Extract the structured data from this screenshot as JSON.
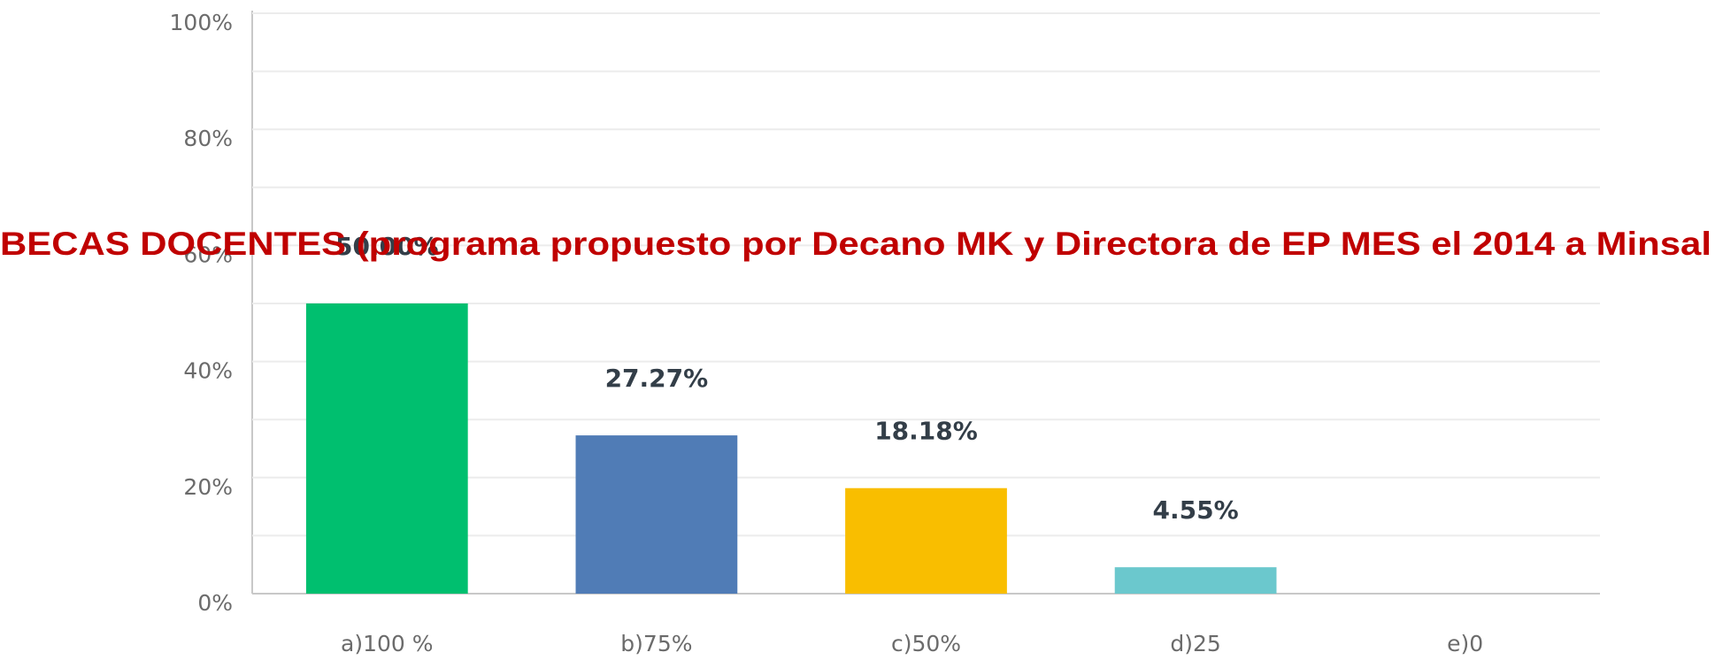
{
  "chart_data": {
    "type": "bar",
    "title": "BECAS DOCENTES (programa propuesto por Decano MK y Directora de EP MES  el 2014   a Minsal",
    "categories": [
      "a)100 %",
      "b)75%",
      "c)50%",
      "d)25",
      "e)0"
    ],
    "values": [
      50.0,
      27.27,
      18.18,
      4.55,
      0
    ],
    "value_labels": [
      "50.00%",
      "27.27%",
      "18.18%",
      "4.55%",
      null
    ],
    "colors": [
      "#00bf6f",
      "#507cb6",
      "#f9be00",
      "#6bc8cd",
      "#9aa0a6"
    ],
    "ylim": [
      0,
      100
    ],
    "yticks": [
      {
        "value": 0,
        "label": "0%"
      },
      {
        "value": 20,
        "label": "20%"
      },
      {
        "value": 40,
        "label": "40%"
      },
      {
        "value": 60,
        "label": "60%"
      },
      {
        "value": 80,
        "label": "80%"
      },
      {
        "value": 100,
        "label": "100%"
      }
    ],
    "minor_yticks": [
      10,
      30,
      50,
      70,
      90
    ],
    "grid": true
  }
}
